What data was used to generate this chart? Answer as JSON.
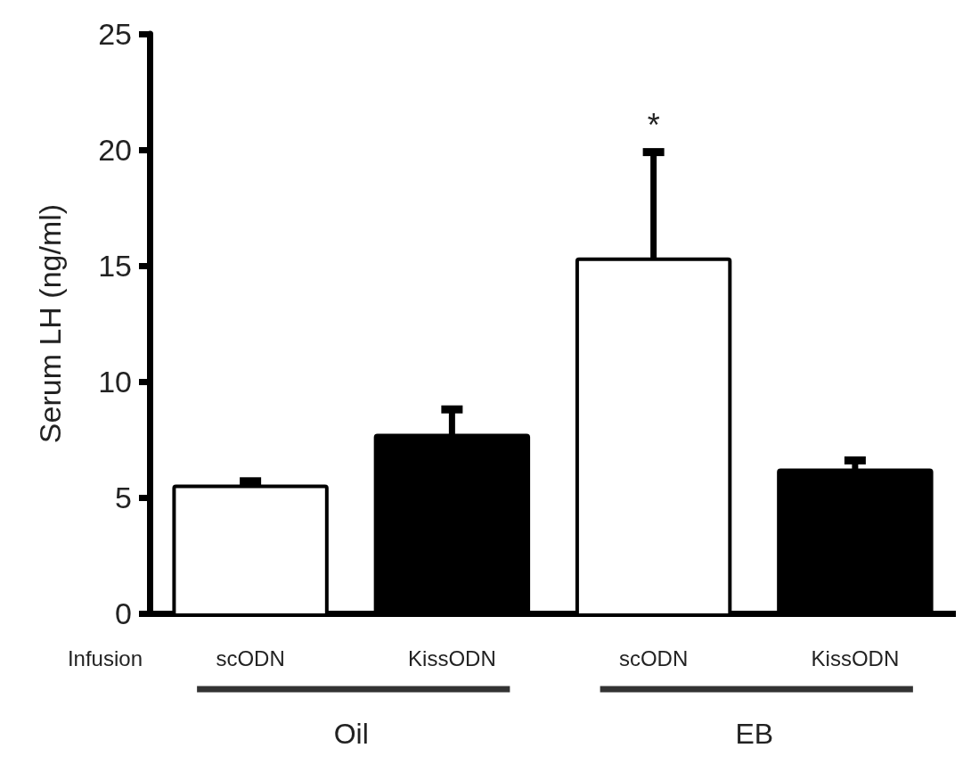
{
  "chart_data": {
    "type": "bar",
    "ylabel": "Serum LH (ng/ml)",
    "categories": [
      "scODN",
      "KissODN",
      "scODN",
      "KissODN"
    ],
    "values": [
      5.4,
      7.6,
      15.2,
      6.1
    ],
    "errors": [
      0.3,
      1.2,
      4.7,
      0.5
    ],
    "colors": [
      "#ffffff",
      "#000000",
      "#ffffff",
      "#000000"
    ],
    "ylim": [
      0,
      25
    ],
    "yticks": [
      0,
      5,
      10,
      15,
      20,
      25
    ],
    "grid": false,
    "annotations": [
      "*",
      "Infusion",
      "Oil",
      "EB"
    ]
  }
}
